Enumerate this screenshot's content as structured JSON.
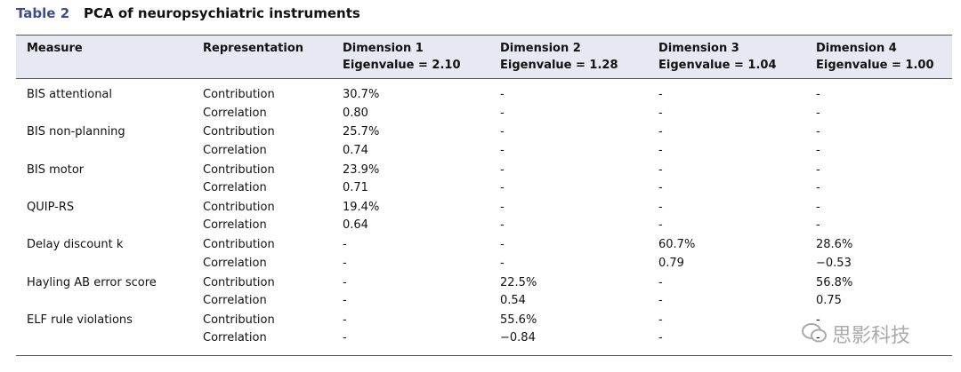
{
  "header": {
    "label": "Table 2",
    "title": "PCA of neuropsychiatric instruments"
  },
  "table": {
    "columns": [
      {
        "name": "Measure"
      },
      {
        "name": "Representation"
      },
      {
        "name": "Dimension 1",
        "eigenvalue": "Eigenvalue = 2.10"
      },
      {
        "name": "Dimension 2",
        "eigenvalue": "Eigenvalue = 1.28"
      },
      {
        "name": "Dimension 3",
        "eigenvalue": "Eigenvalue = 1.04"
      },
      {
        "name": "Dimension 4",
        "eigenvalue": "Eigenvalue = 1.00"
      }
    ],
    "groups": [
      {
        "measure": "BIS attentional",
        "rows": [
          [
            "Contribution",
            "30.7%",
            "-",
            "-",
            "-"
          ],
          [
            "Correlation",
            "0.80",
            "-",
            "-",
            "-"
          ]
        ]
      },
      {
        "measure": "BIS non-planning",
        "rows": [
          [
            "Contribution",
            "25.7%",
            "-",
            "-",
            "-"
          ],
          [
            "Correlation",
            "0.74",
            "-",
            "-",
            "-"
          ]
        ]
      },
      {
        "measure": "BIS motor",
        "rows": [
          [
            "Contribution",
            "23.9%",
            "-",
            "-",
            "-"
          ],
          [
            "Correlation",
            "0.71",
            "-",
            "-",
            "-"
          ]
        ]
      },
      {
        "measure": "QUIP-RS",
        "rows": [
          [
            "Contribution",
            "19.4%",
            "-",
            "-",
            "-"
          ],
          [
            "Correlation",
            "0.64",
            "-",
            "-",
            "-"
          ]
        ]
      },
      {
        "measure": "Delay discount k",
        "rows": [
          [
            "Contribution",
            "-",
            "-",
            "60.7%",
            "28.6%"
          ],
          [
            "Correlation",
            "-",
            "-",
            "0.79",
            "−0.53"
          ]
        ]
      },
      {
        "measure": "Hayling AB error score",
        "rows": [
          [
            "Contribution",
            "-",
            "22.5%",
            "-",
            "56.8%"
          ],
          [
            "Correlation",
            "-",
            "0.54",
            "-",
            "0.75"
          ]
        ]
      },
      {
        "measure": "ELF rule violations",
        "rows": [
          [
            "Contribution",
            "-",
            "55.6%",
            "-",
            "-"
          ],
          [
            "Correlation",
            "-",
            "−0.84",
            "-",
            "-"
          ]
        ]
      }
    ]
  },
  "watermark": "思影科技"
}
